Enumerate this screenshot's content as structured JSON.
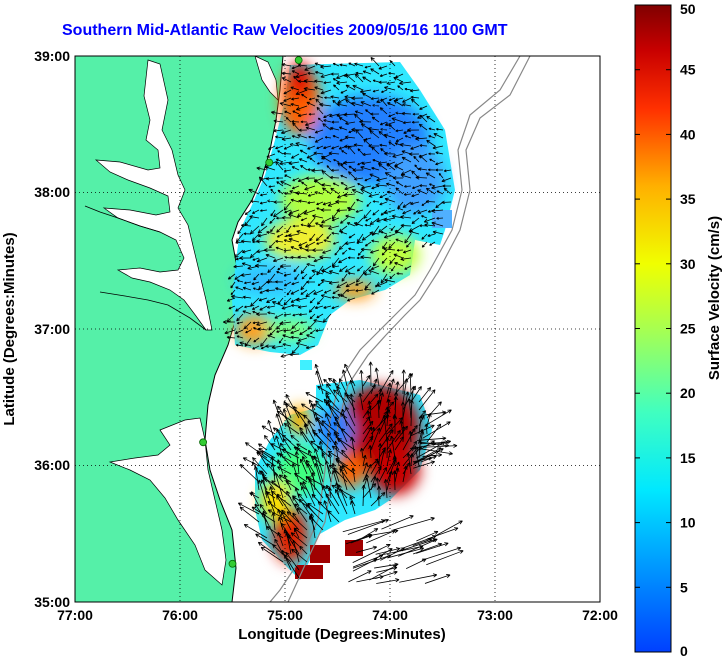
{
  "figure": {
    "title": "Southern Mid-Atlantic Raw Velocities 2009/05/16 1100 GMT",
    "xlabel": "Longitude (Degrees:Minutes)",
    "ylabel": "Latitude (Degrees:Minutes)",
    "x_ticks": [
      "77:00",
      "76:00",
      "75:00",
      "74:00",
      "73:00",
      "72:00"
    ],
    "y_ticks": [
      "39:00",
      "38:00",
      "37:00",
      "36:00",
      "35:00"
    ],
    "xlim": [
      -77,
      -72
    ],
    "ylim": [
      35,
      39
    ],
    "grid": "dotted"
  },
  "colorbar": {
    "label": "Surface Velocity (cm/s)",
    "ticks": [
      "50",
      "45",
      "40",
      "35",
      "30",
      "25",
      "20",
      "15",
      "10",
      "5",
      "0"
    ],
    "range": [
      0,
      50
    ],
    "colormap": "jet"
  },
  "colors": {
    "land": "#55f0a8",
    "water": "#ffffff",
    "title": "#0000ff",
    "coastline": "#000000",
    "bathymetry": "#888888",
    "station_marker": "#33cc33"
  },
  "stations": [
    {
      "lon": -74.87,
      "lat": 38.97
    },
    {
      "lon": -75.15,
      "lat": 38.22
    },
    {
      "lon": -75.78,
      "lat": 36.17
    },
    {
      "lon": -75.5,
      "lat": 35.28
    }
  ]
}
